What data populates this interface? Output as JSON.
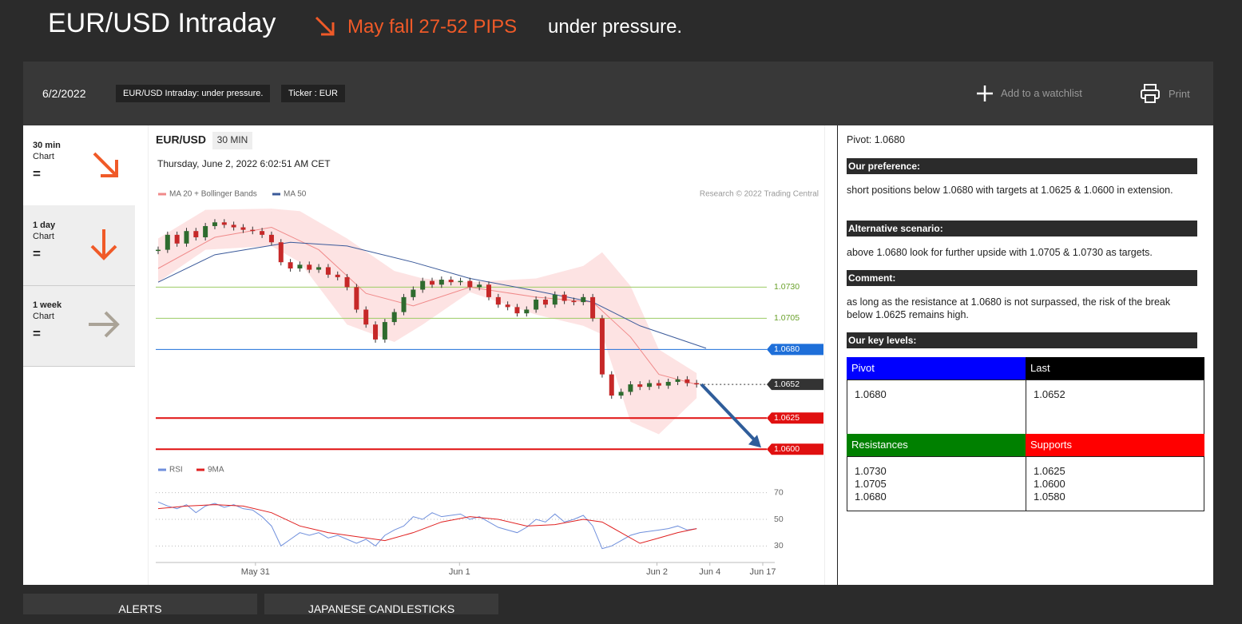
{
  "header": {
    "title": "EUR/USD Intraday",
    "call": "May fall 27-52 PIPS",
    "summary": "under pressure."
  },
  "toolbar": {
    "date": "6/2/2022",
    "tags": [
      "EUR/USD Intraday: under pressure.",
      "Ticker : EUR"
    ],
    "watchlist": "Add to a watchlist",
    "print": "Print"
  },
  "sidebar": [
    {
      "period": "30 min",
      "label": "Chart",
      "status": "="
    },
    {
      "period": "1 day",
      "label": "Chart",
      "status": "="
    },
    {
      "period": "1 week",
      "label": "Chart",
      "status": "="
    }
  ],
  "chart_data": {
    "type": "candlestick",
    "title": "EUR/USD",
    "timeframe": "30 MIN",
    "subtitle": "Thursday, June 2, 2022 6:02:51 AM CET",
    "credit": "Research © 2022 Trading Central",
    "x": [
      0,
      1,
      2,
      3,
      4,
      5,
      6,
      7,
      8,
      9,
      10,
      11,
      12,
      13,
      14,
      15,
      16,
      17,
      18,
      19,
      20,
      21,
      22,
      23,
      24,
      25,
      26,
      27,
      28,
      29,
      30,
      31,
      32,
      33,
      34,
      35,
      36,
      37,
      38,
      39,
      40,
      41,
      42,
      43,
      44,
      45,
      46,
      47,
      48,
      49,
      50,
      51,
      52,
      53,
      54,
      55,
      56,
      57
    ],
    "close": [
      1.076,
      1.0772,
      1.0765,
      1.0775,
      1.077,
      1.0779,
      1.0782,
      1.078,
      1.0778,
      1.0776,
      1.0775,
      1.0772,
      1.0766,
      1.075,
      1.0745,
      1.0748,
      1.0744,
      1.0746,
      1.074,
      1.0738,
      1.073,
      1.0712,
      1.07,
      1.0688,
      1.0702,
      1.071,
      1.0722,
      1.0728,
      1.0735,
      1.0732,
      1.0736,
      1.0734,
      1.0735,
      1.073,
      1.0732,
      1.0722,
      1.0716,
      1.0714,
      1.0709,
      1.0712,
      1.072,
      1.0716,
      1.0724,
      1.0719,
      1.0718,
      1.0722,
      1.0705,
      1.066,
      1.0643,
      1.0646,
      1.0652,
      1.065,
      1.0653,
      1.0651,
      1.0654,
      1.0656,
      1.0653,
      1.0652
    ],
    "up_color": "#2e6b2e",
    "down_color": "#c62828",
    "xlim": [
      0,
      64
    ],
    "xticks": [
      {
        "value": 10.3,
        "label": "May 31"
      },
      {
        "value": 31.9,
        "label": "Jun 1"
      },
      {
        "value": 52.8,
        "label": "Jun 2"
      },
      {
        "value": 58.4,
        "label": "Jun 4"
      },
      {
        "value": 64,
        "label": "Jun 17"
      }
    ],
    "ylim": [
      1.0595,
      1.0795
    ],
    "bands": {
      "name": "MA 20 + Bollinger Bands",
      "color": "#f08a8a",
      "fill": "#fde3e3",
      "x": [
        0,
        5,
        12,
        15,
        20,
        25,
        28,
        33,
        40,
        45,
        47,
        50,
        53,
        57
      ],
      "upper": [
        1.0769,
        1.0792,
        1.0793,
        1.0791,
        1.0769,
        1.0743,
        1.0737,
        1.0734,
        1.0737,
        1.0747,
        1.0758,
        1.0731,
        1.068,
        1.0661
      ],
      "lower": [
        1.0734,
        1.076,
        1.0763,
        1.075,
        1.07,
        1.0686,
        1.07,
        1.0726,
        1.0708,
        1.0699,
        1.0692,
        1.0622,
        1.0612,
        1.0641
      ],
      "mid_x": [
        0,
        6,
        12,
        17,
        22,
        27,
        33,
        40,
        46,
        50,
        53,
        57
      ],
      "middle": [
        1.0745,
        1.077,
        1.0778,
        1.076,
        1.0725,
        1.0715,
        1.073,
        1.0722,
        1.0718,
        1.069,
        1.066,
        1.0652
      ]
    },
    "ma50": {
      "name": "MA 50",
      "color": "#3b5a9a",
      "x": [
        0,
        6,
        14,
        20,
        27,
        33,
        40,
        46,
        51,
        58
      ],
      "values": [
        1.0734,
        1.0756,
        1.0766,
        1.0763,
        1.075,
        1.0737,
        1.0727,
        1.0718,
        1.0699,
        1.0681
      ]
    },
    "levels": [
      {
        "value": 1.073,
        "label": "1.0730",
        "color": "#9ccc65",
        "boxed": false,
        "dotted": false
      },
      {
        "value": 1.0705,
        "label": "1.0705",
        "color": "#9ccc65",
        "boxed": false,
        "dotted": false
      },
      {
        "value": 1.068,
        "label": "1.0680",
        "color": "#1e6fd9",
        "boxed": true,
        "dotted": false
      },
      {
        "value": 1.0652,
        "label": "1.0652",
        "color": "#333333",
        "boxed": true,
        "dotted": true
      },
      {
        "value": 1.0625,
        "label": "1.0625",
        "color": "#e01010",
        "boxed": true,
        "dotted": false
      },
      {
        "value": 1.06,
        "label": "1.0600",
        "color": "#e01010",
        "boxed": true,
        "dotted": false
      }
    ],
    "arrow_color": "#2f5d9a",
    "rsi": {
      "ylim": [
        20,
        80
      ],
      "yticks": [
        30,
        50,
        70
      ],
      "series": [
        {
          "name": "RSI",
          "color": "#6f8fdc",
          "x": [
            0,
            1,
            2,
            3,
            4,
            5,
            6,
            7,
            8,
            9,
            10,
            11,
            12,
            13,
            14,
            15,
            16,
            17,
            18,
            19,
            20,
            21,
            22,
            23,
            24,
            25,
            26,
            27,
            28,
            29,
            30,
            31,
            32,
            33,
            34,
            35,
            36,
            37,
            38,
            39,
            40,
            41,
            42,
            43,
            44,
            45,
            46,
            47,
            48,
            49,
            50,
            51,
            52,
            53,
            54,
            55,
            56,
            57
          ],
          "values": [
            63,
            60,
            58,
            61,
            55,
            60,
            62,
            59,
            61,
            58,
            57,
            52,
            45,
            30,
            35,
            40,
            38,
            40,
            36,
            38,
            35,
            32,
            35,
            30,
            38,
            42,
            45,
            52,
            50,
            55,
            52,
            53,
            54,
            50,
            52,
            48,
            44,
            42,
            40,
            44,
            50,
            48,
            54,
            48,
            50,
            53,
            45,
            28,
            30,
            34,
            38,
            40,
            41,
            42,
            43,
            45,
            42,
            43
          ]
        },
        {
          "name": "9MA",
          "color": "#e02020",
          "x": [
            0,
            3,
            6,
            9,
            12,
            15,
            18,
            21,
            24,
            27,
            30,
            33,
            36,
            39,
            42,
            45,
            47,
            49,
            51,
            53,
            55,
            57
          ],
          "values": [
            58,
            60,
            61,
            60,
            55,
            45,
            40,
            37,
            34,
            40,
            48,
            52,
            50,
            45,
            46,
            50,
            48,
            40,
            32,
            36,
            40,
            43
          ]
        }
      ]
    }
  },
  "analysis": {
    "pivot": "Pivot: 1.0680",
    "preference_title": "Our preference:",
    "preference": "short positions below 1.0680 with targets at 1.0625 & 1.0600 in extension.",
    "alternative_title": "Alternative scenario:",
    "alternative": "above 1.0680 look for further upside with 1.0705 & 1.0730 as targets.",
    "comment_title": "Comment:",
    "comment": "as long as the resistance at 1.0680 is not surpassed, the risk of the break below 1.0625 remains high.",
    "levels_title": "Our key levels:",
    "key_levels": {
      "pivot_head": "Pivot",
      "pivot": "1.0680",
      "last_head": "Last",
      "last": "1.0652",
      "res_head": "Resistances",
      "resistances": [
        "1.0730",
        "1.0705",
        "1.0680"
      ],
      "sup_head": "Supports",
      "supports": [
        "1.0625",
        "1.0600",
        "1.0580"
      ]
    }
  },
  "tabs": [
    "ALERTS",
    "JAPANESE CANDLESTICKS"
  ]
}
